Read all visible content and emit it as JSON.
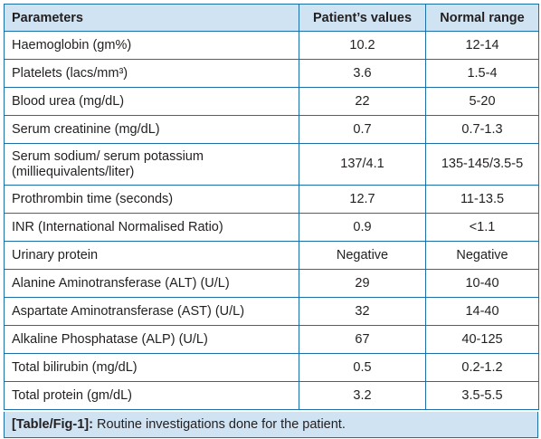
{
  "table": {
    "headers": [
      "Parameters",
      "Patient’s values",
      "Normal range"
    ],
    "rows": [
      {
        "parameter": "Haemoglobin (gm%)",
        "value": "10.2",
        "range": "12-14"
      },
      {
        "parameter": "Platelets (lacs/mm³)",
        "value": "3.6",
        "range": "1.5-4"
      },
      {
        "parameter": "Blood urea (mg/dL)",
        "value": "22",
        "range": "5-20"
      },
      {
        "parameter": "Serum creatinine (mg/dL)",
        "value": "0.7",
        "range": "0.7-1.3"
      },
      {
        "parameter_line1": "Serum sodium/ serum potassium",
        "parameter_line2": "(milliequivalents/liter)",
        "value": "137/4.1",
        "range": "135-145/3.5-5"
      },
      {
        "parameter": "Prothrombin time (seconds)",
        "value": "12.7",
        "range": "11-13.5"
      },
      {
        "parameter": "INR (International Normalised Ratio)",
        "value": "0.9",
        "range": "<1.1"
      },
      {
        "parameter": "Urinary protein",
        "value": "Negative",
        "range": "Negative"
      },
      {
        "parameter": "Alanine Aminotransferase (ALT) (U/L)",
        "value": "29",
        "range": "10-40"
      },
      {
        "parameter": "Aspartate Aminotransferase (AST) (U/L)",
        "value": "32",
        "range": "14-40"
      },
      {
        "parameter": "Alkaline Phosphatase (ALP) (U/L)",
        "value": "67",
        "range": "40-125"
      },
      {
        "parameter": "Total bilirubin (mg/dL)",
        "value": "0.5",
        "range": "0.2-1.2"
      },
      {
        "parameter": "Total protein (gm/dL)",
        "value": "3.2",
        "range": "3.5-5.5"
      }
    ]
  },
  "caption": {
    "label": "[Table/Fig-1]:",
    "text": " Routine investigations done for the patient."
  },
  "colors": {
    "border": "#1d6fa8",
    "header_fill": "#cfe3f3",
    "text": "#231f20"
  }
}
